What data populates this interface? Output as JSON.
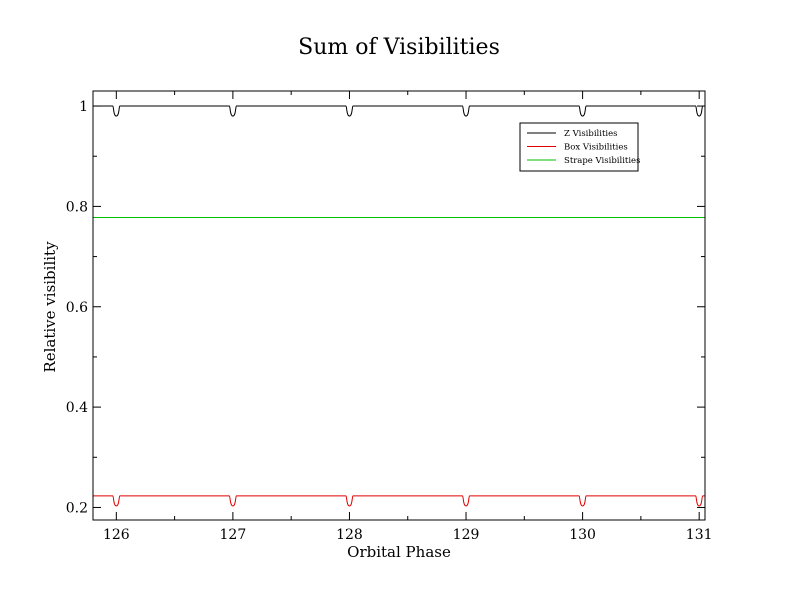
{
  "chart_data": {
    "type": "line",
    "title": "Sum of Visibilities",
    "xlabel": "Orbital Phase",
    "ylabel": "Relative visibility",
    "xlim": [
      125.8,
      131.05
    ],
    "ylim": [
      0.175,
      1.03
    ],
    "x_ticks": [
      126,
      127,
      128,
      129,
      130,
      131
    ],
    "x_tick_labels": [
      "126",
      "127",
      "128",
      "129",
      "130",
      "131"
    ],
    "x_minor_ticks": [
      126.5,
      127.5,
      128.5,
      129.5,
      130.5
    ],
    "y_ticks": [
      0.2,
      0.4,
      0.6,
      0.8,
      1.0
    ],
    "y_tick_labels": [
      "0.2",
      "0.4",
      "0.6",
      "0.8",
      "1"
    ],
    "y_minor_ticks": [
      0.3,
      0.5,
      0.7,
      0.9
    ],
    "grid": false,
    "legend_position": "top-right",
    "series": [
      {
        "name": "Z Visibilities",
        "color": "#000000",
        "baseline": 1.0,
        "dip_depth": 0.02,
        "dip_centers": [
          126,
          127,
          128,
          129,
          130,
          131
        ],
        "dip_halfwidth": 0.03
      },
      {
        "name": "Box Visibilities",
        "color": "#e00000",
        "baseline": 0.223,
        "dip_depth": 0.02,
        "dip_centers": [
          126,
          127,
          128,
          129,
          130,
          131
        ],
        "dip_halfwidth": 0.03
      },
      {
        "name": "Strape Visibilities",
        "color": "#00c000",
        "baseline": 0.778
      }
    ]
  }
}
